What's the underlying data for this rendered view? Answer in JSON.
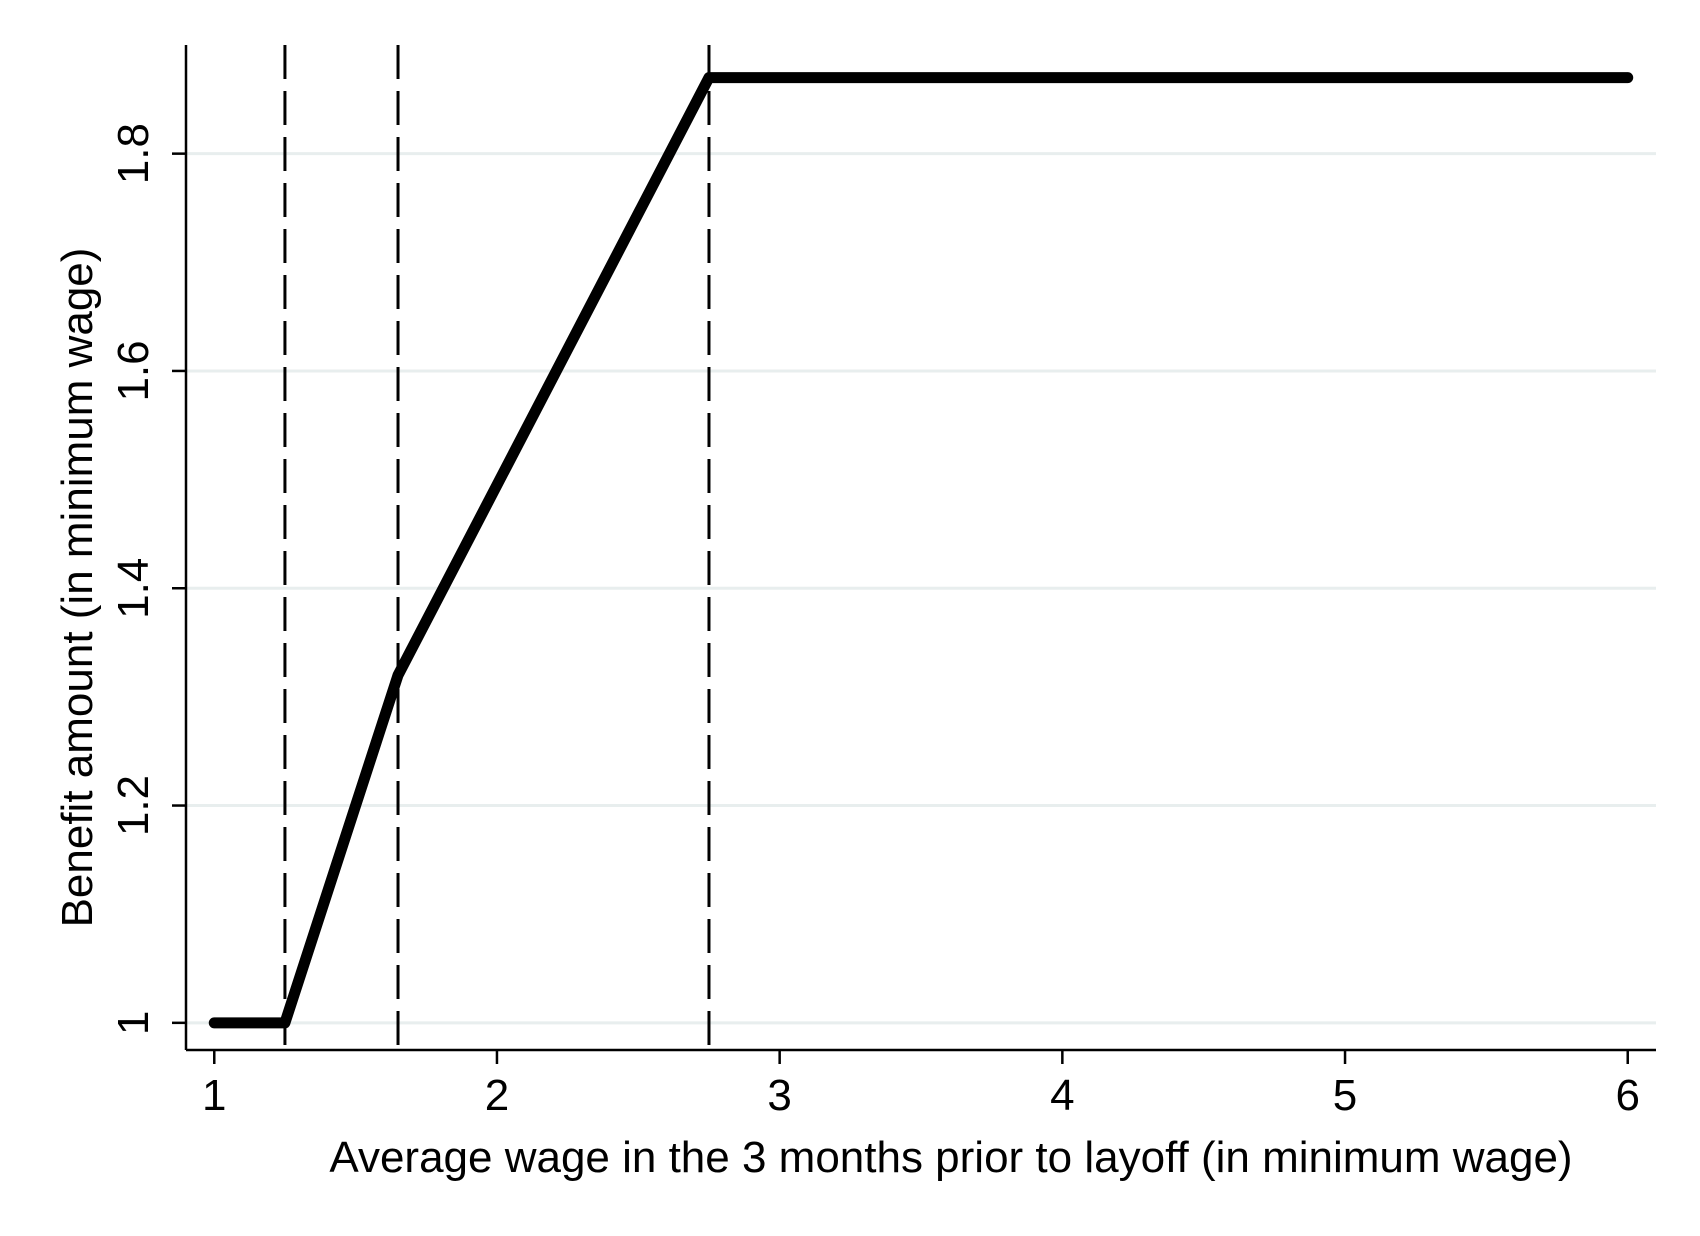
{
  "chart_data": {
    "type": "line",
    "title": "",
    "xlabel": "Average wage in the 3 months prior to layoff (in minimum wage)",
    "ylabel": "Benefit amount (in minimum wage)",
    "xlim": [
      0.9,
      6.1
    ],
    "ylim": [
      0.975,
      1.9
    ],
    "xticks": [
      1,
      2,
      3,
      4,
      5,
      6
    ],
    "xtick_labels": [
      "1",
      "2",
      "3",
      "4",
      "5",
      "6"
    ],
    "yticks": [
      1,
      1.2,
      1.4,
      1.6,
      1.8
    ],
    "ytick_labels": [
      "1",
      "1.2",
      "1.4",
      "1.6",
      "1.8"
    ],
    "grid": "horizontal",
    "legend": "none",
    "series": [
      {
        "x": [
          1,
          1.25,
          1.65,
          2.75,
          6
        ],
        "y": [
          1,
          1,
          1.32,
          1.87,
          1.87
        ],
        "color": "#000000"
      }
    ],
    "vertical_reference_lines": [
      1.25,
      1.65,
      2.75
    ],
    "colors": {
      "line": "#000000",
      "grid": "#e8eeee",
      "axis": "#000000",
      "background": "#ffffff"
    }
  }
}
